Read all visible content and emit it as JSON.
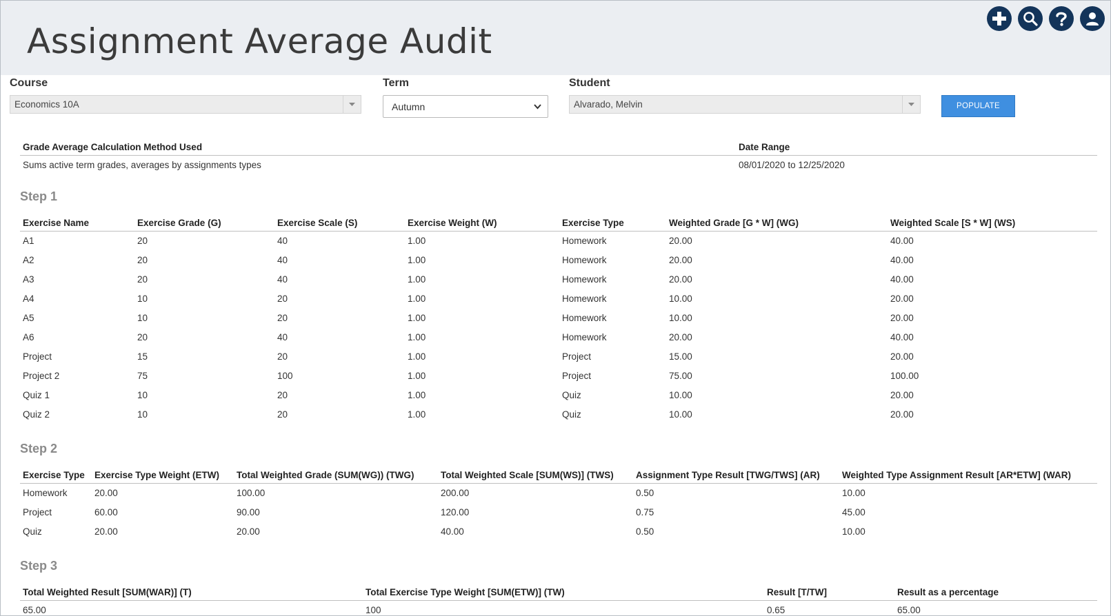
{
  "header": {
    "title": "Assignment Average Audit",
    "icons": [
      "add-icon",
      "search-icon",
      "help-icon",
      "user-icon"
    ]
  },
  "filters": {
    "course_label": "Course",
    "course_value": "Economics 10A",
    "term_label": "Term",
    "term_value": "Autumn",
    "student_label": "Student",
    "student_value": "Alvarado, Melvin",
    "populate_label": "POPULATE"
  },
  "info": {
    "method_header": "Grade Average Calculation Method Used",
    "method_value": "Sums active term grades, averages by assignments types",
    "range_header": "Date Range",
    "range_value": "08/01/2020 to 12/25/2020"
  },
  "step1": {
    "title": "Step 1",
    "columns": [
      "Exercise Name",
      "Exercise Grade (G)",
      "Exercise Scale (S)",
      "Exercise Weight (W)",
      "Exercise Type",
      "Weighted Grade [G * W] (WG)",
      "Weighted Scale [S * W] (WS)"
    ],
    "rows": [
      [
        "A1",
        "20",
        "40",
        "1.00",
        "Homework",
        "20.00",
        "40.00"
      ],
      [
        "A2",
        "20",
        "40",
        "1.00",
        "Homework",
        "20.00",
        "40.00"
      ],
      [
        "A3",
        "20",
        "40",
        "1.00",
        "Homework",
        "20.00",
        "40.00"
      ],
      [
        "A4",
        "10",
        "20",
        "1.00",
        "Homework",
        "10.00",
        "20.00"
      ],
      [
        "A5",
        "10",
        "20",
        "1.00",
        "Homework",
        "10.00",
        "20.00"
      ],
      [
        "A6",
        "20",
        "40",
        "1.00",
        "Homework",
        "20.00",
        "40.00"
      ],
      [
        "Project",
        "15",
        "20",
        "1.00",
        "Project",
        "15.00",
        "20.00"
      ],
      [
        "Project 2",
        "75",
        "100",
        "1.00",
        "Project",
        "75.00",
        "100.00"
      ],
      [
        "Quiz 1",
        "10",
        "20",
        "1.00",
        "Quiz",
        "10.00",
        "20.00"
      ],
      [
        "Quiz 2",
        "10",
        "20",
        "1.00",
        "Quiz",
        "10.00",
        "20.00"
      ]
    ]
  },
  "step2": {
    "title": "Step 2",
    "columns": [
      "Exercise Type",
      "Exercise Type Weight (ETW)",
      "Total Weighted Grade (SUM(WG)) (TWG)",
      "Total Weighted Scale [SUM(WS)] (TWS)",
      "Assignment Type Result [TWG/TWS] (AR)",
      "Weighted Type Assignment Result [AR*ETW] (WAR)"
    ],
    "rows": [
      [
        "Homework",
        "20.00",
        "100.00",
        "200.00",
        "0.50",
        "10.00"
      ],
      [
        "Project",
        "60.00",
        "90.00",
        "120.00",
        "0.75",
        "45.00"
      ],
      [
        "Quiz",
        "20.00",
        "20.00",
        "40.00",
        "0.50",
        "10.00"
      ]
    ]
  },
  "step3": {
    "title": "Step 3",
    "columns": [
      "Total Weighted Result [SUM(WAR)] (T)",
      "Total Exercise Type Weight [SUM(ETW)] (TW)",
      "Result [T/TW]",
      "Result as a percentage"
    ],
    "rows": [
      [
        "65.00",
        "100",
        "0.65",
        "65.00"
      ]
    ]
  }
}
